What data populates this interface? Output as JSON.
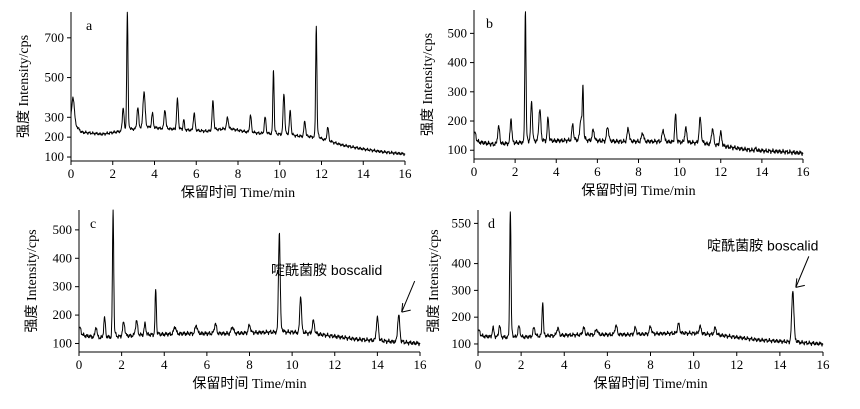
{
  "chart_data": [
    {
      "type": "line",
      "panel_label": "a",
      "xlabel": "保留时间 Time/min",
      "ylabel": "强度 Intensity/cps",
      "xlim": [
        0,
        16
      ],
      "ylim": [
        80,
        830
      ],
      "xticks": [
        "0",
        "2",
        "4",
        "6",
        "8",
        "10",
        "12",
        "14",
        "16"
      ],
      "xtick_values": [
        0,
        2,
        4,
        6,
        8,
        10,
        12,
        14,
        16
      ],
      "yticks": [
        "100",
        "200",
        "300",
        "500",
        "700"
      ],
      "ytick_values": [
        100,
        200,
        300,
        500,
        700
      ],
      "baseline": [
        [
          0,
          280
        ],
        [
          0.5,
          225
        ],
        [
          1.5,
          215
        ],
        [
          2.4,
          230
        ],
        [
          3.5,
          250
        ],
        [
          5,
          240
        ],
        [
          6.5,
          230
        ],
        [
          7.5,
          245
        ],
        [
          8.5,
          225
        ],
        [
          9,
          220
        ],
        [
          10,
          215
        ],
        [
          11,
          205
        ],
        [
          11.8,
          200
        ],
        [
          12.2,
          185
        ],
        [
          13,
          160
        ],
        [
          14,
          140
        ],
        [
          15,
          125
        ],
        [
          16,
          115
        ]
      ],
      "peaks": [
        [
          0.1,
          400,
          0.06
        ],
        [
          2.5,
          350,
          0.04
        ],
        [
          2.7,
          830,
          0.03
        ],
        [
          3.2,
          350,
          0.04
        ],
        [
          3.5,
          430,
          0.05
        ],
        [
          3.9,
          320,
          0.04
        ],
        [
          4.5,
          340,
          0.04
        ],
        [
          5.1,
          390,
          0.04
        ],
        [
          5.4,
          290,
          0.03
        ],
        [
          5.9,
          320,
          0.04
        ],
        [
          6.8,
          380,
          0.04
        ],
        [
          7.5,
          300,
          0.04
        ],
        [
          8.6,
          310,
          0.04
        ],
        [
          9.3,
          300,
          0.04
        ],
        [
          9.7,
          540,
          0.03
        ],
        [
          10.2,
          420,
          0.04
        ],
        [
          10.5,
          330,
          0.04
        ],
        [
          11.2,
          280,
          0.04
        ],
        [
          11.75,
          760,
          0.03
        ],
        [
          12.3,
          250,
          0.04
        ]
      ],
      "annotation": ""
    },
    {
      "type": "line",
      "panel_label": "b",
      "xlabel": "保留时间 Time/min",
      "ylabel": "强度 Intensity/cps",
      "xlim": [
        0,
        16
      ],
      "ylim": [
        70,
        580
      ],
      "xticks": [
        "0",
        "2",
        "4",
        "6",
        "8",
        "10",
        "12",
        "14",
        "16"
      ],
      "xtick_values": [
        0,
        2,
        4,
        6,
        8,
        10,
        12,
        14,
        16
      ],
      "yticks": [
        "100",
        "200",
        "300",
        "400",
        "500"
      ],
      "ytick_values": [
        100,
        200,
        300,
        400,
        500
      ],
      "baseline": [
        [
          0,
          130
        ],
        [
          1,
          120
        ],
        [
          2,
          125
        ],
        [
          3,
          130
        ],
        [
          5,
          135
        ],
        [
          7,
          130
        ],
        [
          9,
          130
        ],
        [
          11,
          125
        ],
        [
          12.5,
          110
        ],
        [
          13.5,
          100
        ],
        [
          15,
          95
        ],
        [
          16,
          90
        ]
      ],
      "peaks": [
        [
          0.05,
          160,
          0.05
        ],
        [
          1.2,
          180,
          0.05
        ],
        [
          1.8,
          210,
          0.04
        ],
        [
          2.5,
          580,
          0.03
        ],
        [
          2.8,
          270,
          0.04
        ],
        [
          3.2,
          240,
          0.05
        ],
        [
          3.6,
          210,
          0.04
        ],
        [
          4.8,
          190,
          0.04
        ],
        [
          5.2,
          210,
          0.05
        ],
        [
          5.3,
          310,
          0.03
        ],
        [
          5.8,
          170,
          0.05
        ],
        [
          6.5,
          180,
          0.05
        ],
        [
          7.5,
          175,
          0.05
        ],
        [
          8.2,
          160,
          0.05
        ],
        [
          9.2,
          170,
          0.05
        ],
        [
          9.8,
          220,
          0.04
        ],
        [
          10.3,
          175,
          0.05
        ],
        [
          11,
          210,
          0.05
        ],
        [
          11.6,
          175,
          0.05
        ],
        [
          12,
          160,
          0.05
        ],
        [
          13.7,
          105,
          0.05
        ]
      ],
      "annotation": ""
    },
    {
      "type": "line",
      "panel_label": "c",
      "xlabel": "保留时间 Time/min",
      "ylabel": "强度 Intensity/cps",
      "xlim": [
        0,
        16
      ],
      "ylim": [
        70,
        570
      ],
      "xticks": [
        "0",
        "2",
        "4",
        "6",
        "8",
        "10",
        "12",
        "14",
        "16"
      ],
      "xtick_values": [
        0,
        2,
        4,
        6,
        8,
        10,
        12,
        14,
        16
      ],
      "yticks": [
        "100",
        "200",
        "300",
        "400",
        "500"
      ],
      "ytick_values": [
        100,
        200,
        300,
        400,
        500
      ],
      "baseline": [
        [
          0,
          130
        ],
        [
          1,
          120
        ],
        [
          2,
          125
        ],
        [
          3,
          130
        ],
        [
          5,
          135
        ],
        [
          7,
          135
        ],
        [
          9,
          140
        ],
        [
          10,
          140
        ],
        [
          11,
          135
        ],
        [
          12,
          125
        ],
        [
          13,
          115
        ],
        [
          14,
          110
        ],
        [
          15,
          105
        ],
        [
          16,
          100
        ]
      ],
      "peaks": [
        [
          0.05,
          155,
          0.05
        ],
        [
          0.8,
          160,
          0.04
        ],
        [
          1.2,
          190,
          0.04
        ],
        [
          1.6,
          570,
          0.03
        ],
        [
          2.1,
          175,
          0.05
        ],
        [
          2.7,
          180,
          0.05
        ],
        [
          3.1,
          170,
          0.04
        ],
        [
          3.6,
          290,
          0.03
        ],
        [
          4.5,
          160,
          0.05
        ],
        [
          5.5,
          165,
          0.05
        ],
        [
          6.4,
          170,
          0.05
        ],
        [
          7.2,
          160,
          0.05
        ],
        [
          8.0,
          165,
          0.05
        ],
        [
          9.4,
          490,
          0.04
        ],
        [
          10.4,
          270,
          0.04
        ],
        [
          11.0,
          180,
          0.05
        ],
        [
          14.0,
          190,
          0.05
        ],
        [
          15.0,
          200,
          0.05
        ]
      ],
      "annotation": "啶酰菌胺 boscalid",
      "annotation_at": [
        15.0,
        200
      ]
    },
    {
      "type": "line",
      "panel_label": "d",
      "xlabel": "保留时间 Time/min",
      "ylabel": "强度 Intensity/cps",
      "xlim": [
        0,
        16
      ],
      "ylim": [
        70,
        600
      ],
      "xticks": [
        "0",
        "2",
        "4",
        "6",
        "8",
        "10",
        "12",
        "14",
        "16"
      ],
      "xtick_values": [
        0,
        2,
        4,
        6,
        8,
        10,
        12,
        14,
        16
      ],
      "yticks": [
        "100",
        "200",
        "300",
        "400",
        "550"
      ],
      "ytick_values": [
        100,
        200,
        300,
        400,
        550
      ],
      "baseline": [
        [
          0,
          130
        ],
        [
          1,
          125
        ],
        [
          2,
          125
        ],
        [
          3,
          130
        ],
        [
          5,
          135
        ],
        [
          7,
          135
        ],
        [
          9,
          140
        ],
        [
          10,
          140
        ],
        [
          11,
          135
        ],
        [
          12,
          125
        ],
        [
          13,
          115
        ],
        [
          14,
          110
        ],
        [
          15,
          105
        ],
        [
          16,
          100
        ]
      ],
      "peaks": [
        [
          0.05,
          150,
          0.05
        ],
        [
          0.7,
          160,
          0.04
        ],
        [
          1.0,
          170,
          0.04
        ],
        [
          1.5,
          600,
          0.03
        ],
        [
          1.9,
          165,
          0.05
        ],
        [
          2.6,
          160,
          0.05
        ],
        [
          3.0,
          260,
          0.03
        ],
        [
          3.7,
          160,
          0.05
        ],
        [
          4.9,
          160,
          0.05
        ],
        [
          5.5,
          155,
          0.05
        ],
        [
          6.4,
          170,
          0.05
        ],
        [
          7.3,
          160,
          0.05
        ],
        [
          8.0,
          165,
          0.05
        ],
        [
          9.3,
          175,
          0.05
        ],
        [
          10.3,
          165,
          0.05
        ],
        [
          11.0,
          160,
          0.05
        ],
        [
          14.6,
          300,
          0.05
        ]
      ],
      "annotation": "啶酰菌胺 boscalid",
      "annotation_at": [
        14.6,
        300
      ]
    }
  ]
}
